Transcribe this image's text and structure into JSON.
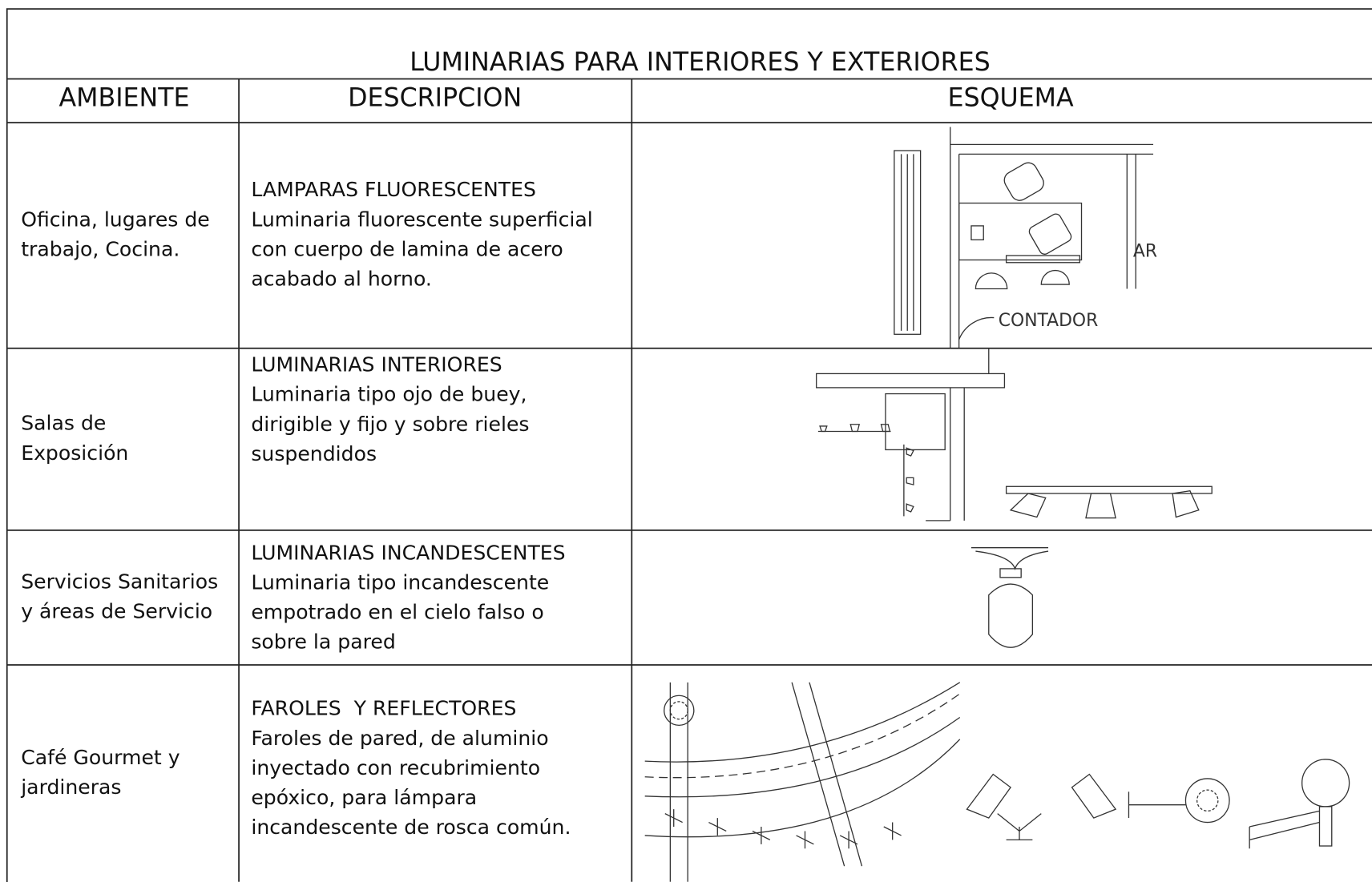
{
  "title": "LUMINARIAS PARA INTERIORES Y EXTERIORES",
  "headers": [
    "AMBIENTE",
    "DESCRIPCION",
    "ESQUEMA"
  ],
  "rows": [
    {
      "ambiente": [
        "Oficina, lugares de",
        "trabajo, Cocina."
      ],
      "descripcion": [
        "LAMPARAS FLUORESCENTES",
        "Luminaria fluorescente superficial",
        "con cuerpo de lamina de acero",
        "acabado al horno."
      ],
      "esquema_labels": [
        "CONTADOR",
        "AR"
      ]
    },
    {
      "ambiente": [
        "Salas de",
        "Exposición"
      ],
      "descripcion": [
        "LUMINARIAS INTERIORES",
        "Luminaria tipo ojo de buey,",
        "dirigible y fijo y sobre rieles",
        "suspendidos"
      ]
    },
    {
      "ambiente": [
        "Servicios Sanitarios",
        "y áreas de Servicio"
      ],
      "descripcion": [
        "LUMINARIAS INCANDESCENTES",
        "Luminaria tipo incandescente",
        "empotrado en el cielo falso o",
        "sobre la pared"
      ]
    },
    {
      "ambiente": [
        "Café Gourmet y",
        "jardineras"
      ],
      "descripcion": [
        "FAROLES  Y REFLECTORES",
        "Faroles de pared, de aluminio",
        "inyectado con recubrimiento",
        "epóxico, para lámpara",
        "incandescente de rosca común."
      ]
    }
  ]
}
